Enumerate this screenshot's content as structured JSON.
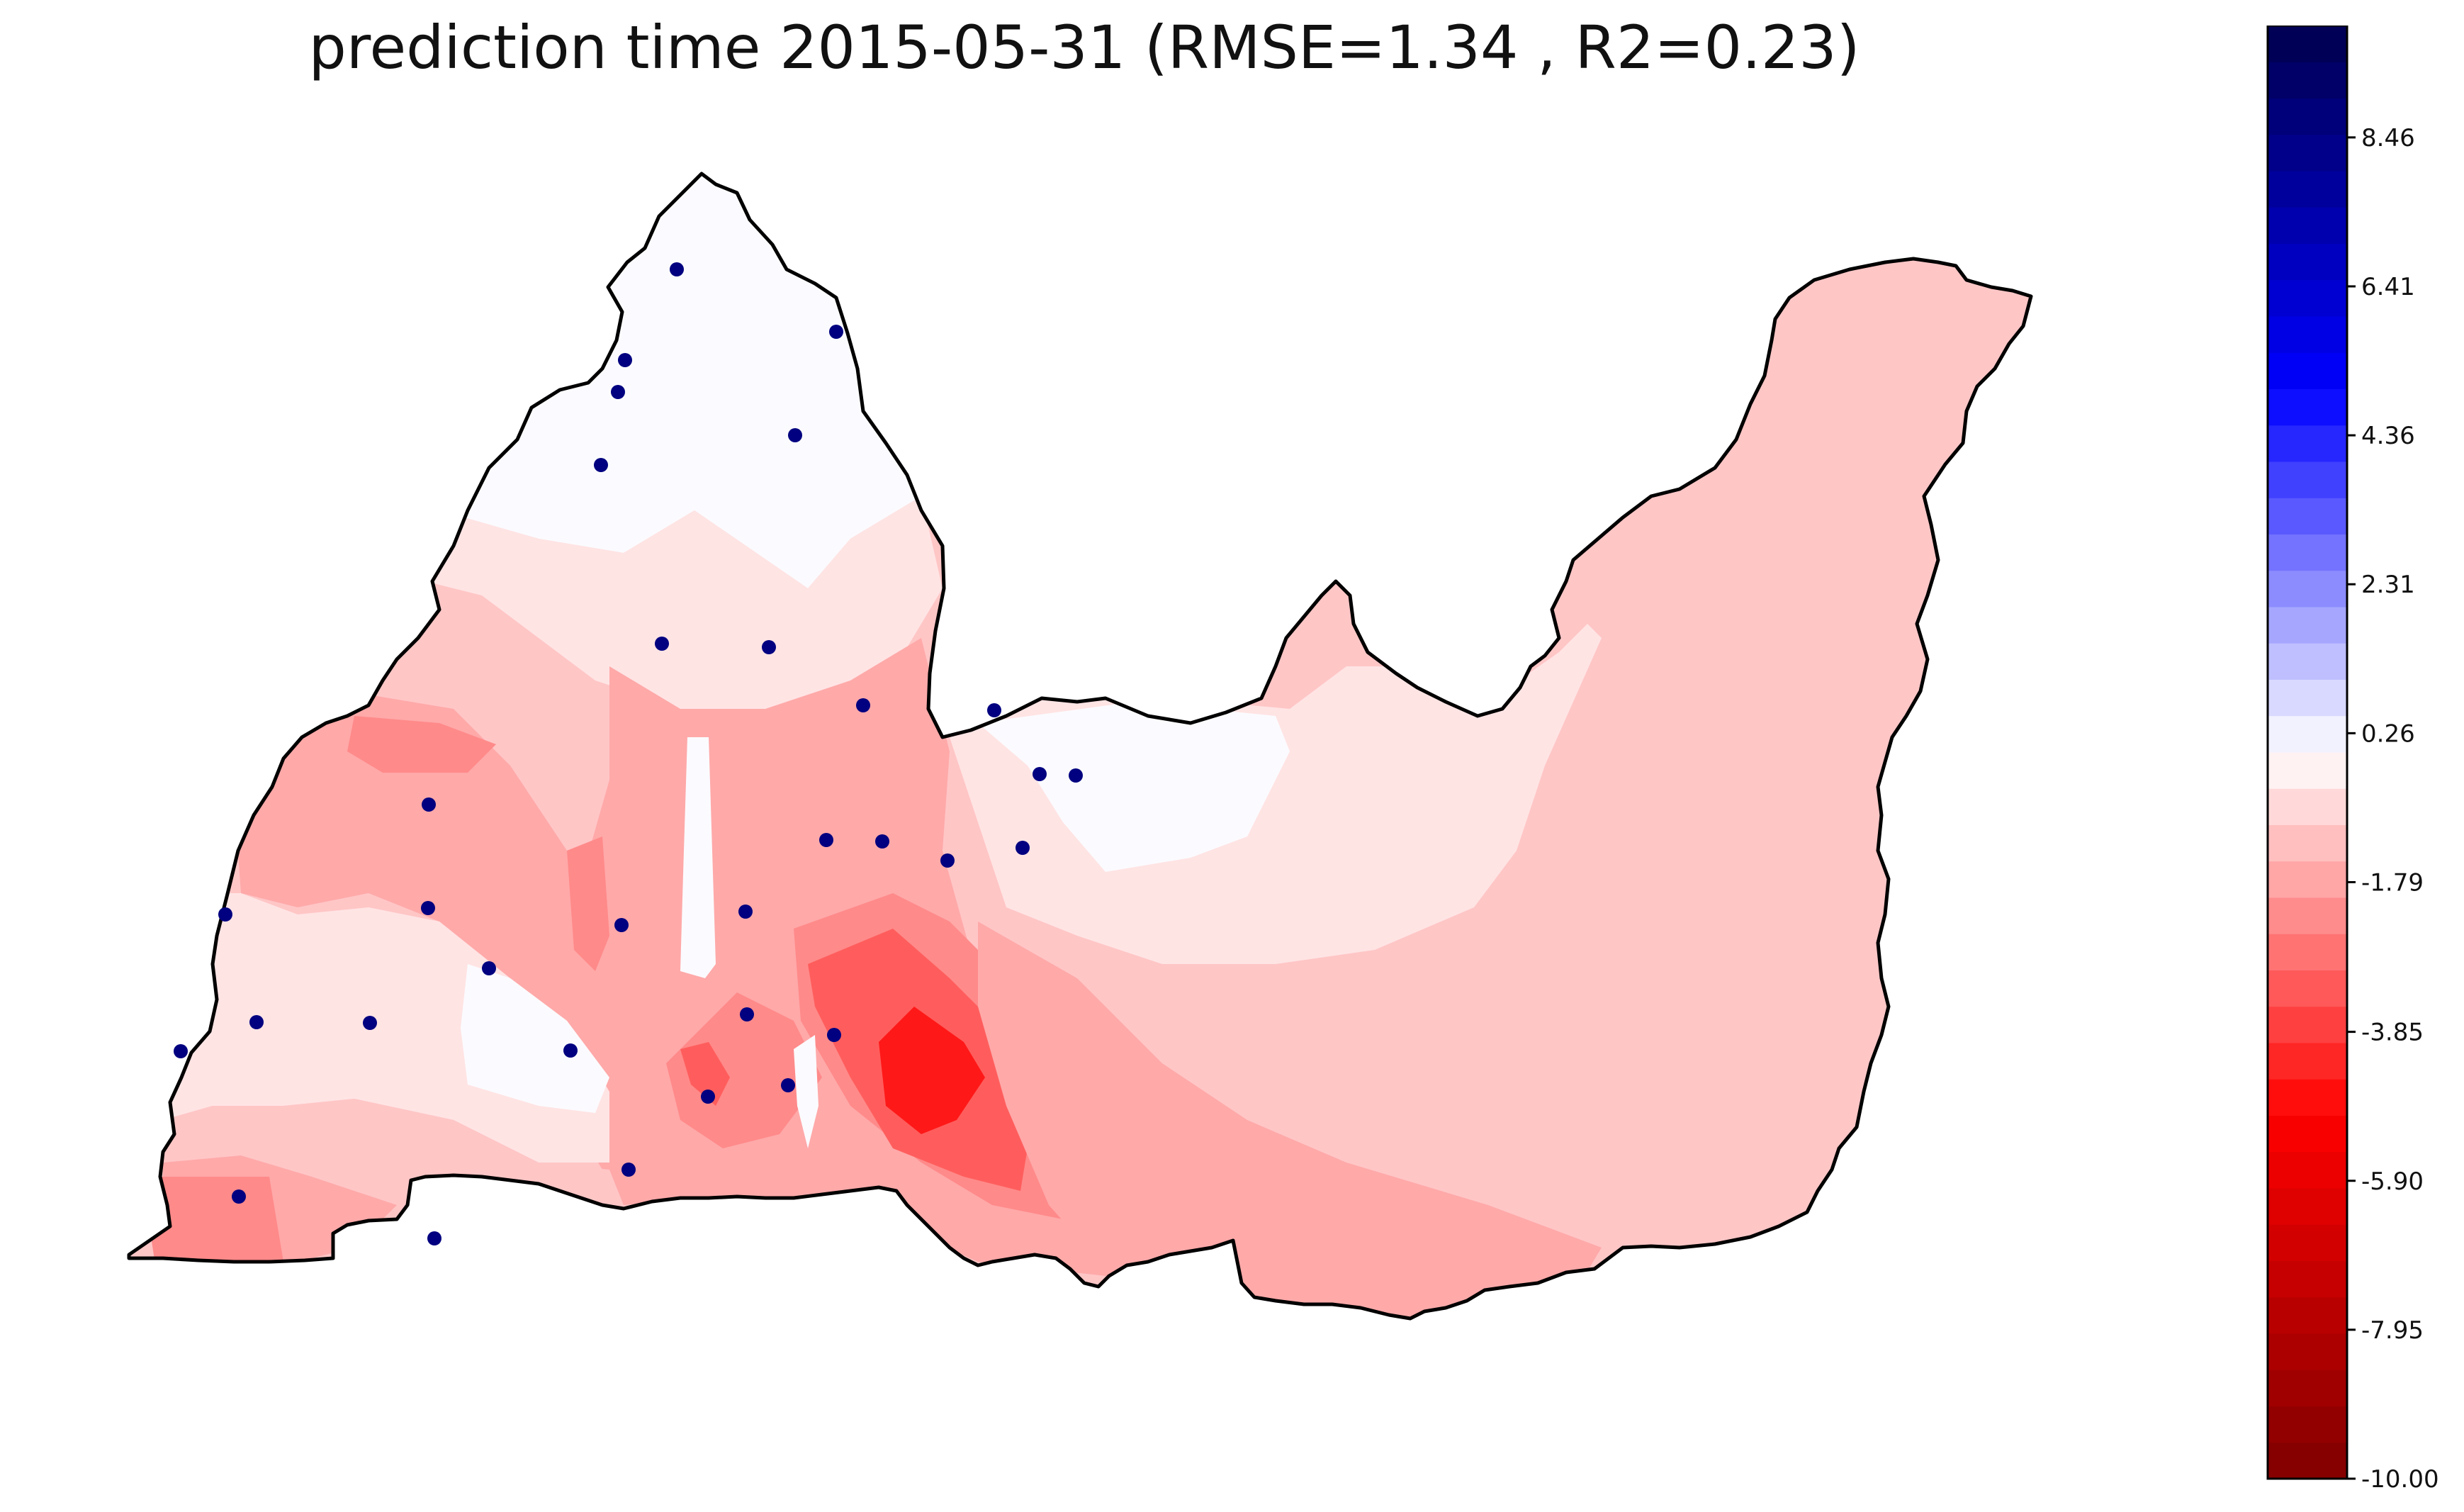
{
  "title": "prediction time 2015-05-31 (RMSE=1.34 , R2=0.23)",
  "colorbar": {
    "min": -10.0,
    "max": 10.0,
    "ticks": [
      "8.46",
      "6.41",
      "4.36",
      "2.31",
      "0.26",
      "-1.79",
      "-3.85",
      "-5.90",
      "-7.95",
      "-10.00"
    ],
    "tick_values": [
      8.46,
      6.41,
      4.36,
      2.31,
      0.26,
      -1.79,
      -3.85,
      -5.9,
      -7.95,
      -10.0
    ],
    "colormap": "seismic_r (red = negative, white = zero, blue = positive)",
    "color_min": "#800000",
    "color_zero": "#ffffff",
    "color_max": "#00004d"
  },
  "station_color": "#000080",
  "map_layers": [
    {
      "name": "region-outline",
      "stroke": "#000000"
    },
    {
      "name": "contour-white",
      "color": "#fbfbff"
    },
    {
      "name": "contour-pale",
      "color": "#ffe4e4"
    },
    {
      "name": "contour-light",
      "color": "#ffc6c6"
    },
    {
      "name": "contour-mid",
      "color": "#ffa9a9"
    },
    {
      "name": "contour-strong",
      "color": "#ff8a8a"
    },
    {
      "name": "contour-hot",
      "color": "#ff5d5d"
    },
    {
      "name": "contour-core",
      "color": "#ff1818"
    }
  ]
}
